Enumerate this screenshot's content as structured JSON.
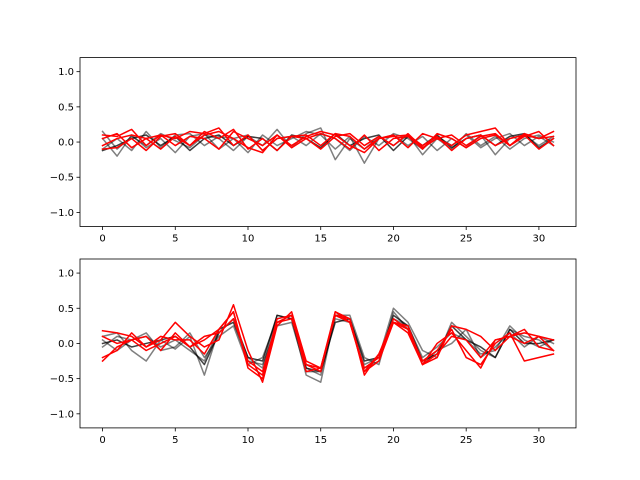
{
  "chart_data": [
    {
      "type": "line",
      "title": "",
      "xlabel": "",
      "ylabel": "",
      "xlim": [
        -1.55,
        32.55
      ],
      "ylim": [
        -1.2,
        1.2
      ],
      "x_ticks": [
        0,
        5,
        10,
        15,
        20,
        25,
        30
      ],
      "y_ticks": [
        -1.0,
        -0.5,
        0.0,
        0.5,
        1.0
      ],
      "x_tick_labels": [
        "0",
        "5",
        "10",
        "15",
        "20",
        "25",
        "30"
      ],
      "y_tick_labels": [
        "−1.0",
        "−0.5",
        "0.0",
        "0.5",
        "1.0"
      ],
      "grid": false,
      "x": [
        0,
        1,
        2,
        3,
        4,
        5,
        6,
        7,
        8,
        9,
        10,
        11,
        12,
        13,
        14,
        15,
        16,
        17,
        18,
        19,
        20,
        21,
        22,
        23,
        24,
        25,
        26,
        27,
        28,
        29,
        30,
        31
      ],
      "series": [
        {
          "color": "#000000",
          "opacity": 0.5,
          "values": [
            0.15,
            -0.1,
            0.08,
            -0.05,
            0.12,
            0.02,
            -0.08,
            0.1,
            0.05,
            -0.12,
            0.08,
            -0.05,
            0.18,
            -0.08,
            0.12,
            0.2,
            -0.25,
            0.05,
            -0.1,
            0.08,
            -0.05,
            0.1,
            -0.18,
            0.05,
            -0.1,
            0.12,
            -0.05,
            0.08,
            -0.1,
            0.05,
            0.1,
            0.0
          ]
        },
        {
          "color": "#000000",
          "opacity": 0.5,
          "values": [
            -0.1,
            0.05,
            -0.12,
            0.15,
            -0.08,
            0.1,
            0.12,
            -0.05,
            0.08,
            0.05,
            -0.15,
            0.1,
            -0.05,
            0.05,
            0.15,
            0.1,
            -0.1,
            0.08,
            -0.3,
            0.05,
            0.1,
            -0.05,
            0.08,
            -0.12,
            0.05,
            -0.08,
            0.1,
            -0.18,
            0.05,
            0.1,
            -0.05,
            0.08
          ]
        },
        {
          "color": "#000000",
          "opacity": 0.5,
          "values": [
            0.05,
            -0.2,
            0.1,
            -0.08,
            0.05,
            -0.15,
            0.08,
            0.12,
            -0.1,
            0.05,
            0.1,
            -0.12,
            0.05,
            0.08,
            -0.05,
            0.12,
            0.05,
            -0.12,
            0.08,
            -0.05,
            0.12,
            0.05,
            -0.1,
            0.08,
            -0.05,
            0.1,
            -0.08,
            0.05,
            0.12,
            -0.05,
            0.08,
            -0.05
          ]
        },
        {
          "color": "#000000",
          "opacity": 0.75,
          "values": [
            -0.12,
            -0.05,
            0.05,
            0.1,
            -0.05,
            0.08,
            -0.12,
            0.05,
            0.1,
            -0.05,
            0.08,
            0.05,
            -0.12,
            0.1,
            0.05,
            -0.08,
            0.12,
            -0.05,
            0.05,
            0.1,
            -0.12,
            0.08,
            -0.05,
            0.1,
            -0.08,
            0.05,
            0.1,
            -0.05,
            0.08,
            0.12,
            -0.08,
            0.05
          ]
        },
        {
          "color": "#ff0000",
          "opacity": 1.0,
          "values": [
            0.1,
            0.08,
            0.18,
            -0.05,
            0.1,
            0.05,
            0.15,
            0.12,
            0.2,
            -0.05,
            0.1,
            -0.12,
            0.05,
            0.08,
            0.1,
            -0.05,
            0.12,
            0.08,
            -0.1,
            0.05,
            0.1,
            -0.08,
            0.12,
            0.05,
            -0.05,
            0.1,
            0.15,
            0.2,
            -0.05,
            0.1,
            0.05,
            0.15
          ]
        },
        {
          "color": "#ff0000",
          "opacity": 1.0,
          "values": [
            -0.1,
            -0.08,
            0.05,
            -0.12,
            0.08,
            0.12,
            -0.05,
            0.15,
            0.05,
            0.18,
            -0.1,
            0.05,
            -0.12,
            0.08,
            0.05,
            -0.1,
            0.08,
            0.12,
            -0.05,
            0.08,
            -0.05,
            0.12,
            -0.08,
            0.05,
            0.1,
            -0.05,
            0.08,
            0.12,
            -0.05,
            0.08,
            0.15,
            -0.05
          ]
        },
        {
          "color": "#ff0000",
          "opacity": 1.0,
          "values": [
            0.05,
            0.12,
            -0.08,
            0.05,
            0.1,
            -0.05,
            0.08,
            0.05,
            -0.1,
            0.15,
            0.05,
            -0.05,
            0.1,
            -0.08,
            0.05,
            0.12,
            0.05,
            -0.1,
            0.1,
            -0.12,
            0.05,
            0.08,
            -0.1,
            0.12,
            0.05,
            -0.08,
            0.05,
            0.1,
            -0.05,
            0.12,
            0.05,
            0.08
          ]
        },
        {
          "color": "#ff0000",
          "opacity": 1.0,
          "values": [
            -0.05,
            0.05,
            0.1,
            0.05,
            -0.1,
            0.08,
            -0.05,
            0.1,
            0.15,
            0.05,
            -0.08,
            -0.15,
            0.1,
            -0.05,
            0.08,
            0.15,
            0.1,
            -0.05,
            -0.15,
            0.05,
            0.08,
            0.1,
            -0.05,
            0.08,
            -0.12,
            0.05,
            0.1,
            -0.05,
            0.05,
            0.1,
            -0.1,
            0.05
          ]
        }
      ]
    },
    {
      "type": "line",
      "title": "",
      "xlabel": "",
      "ylabel": "",
      "xlim": [
        -1.55,
        32.55
      ],
      "ylim": [
        -1.2,
        1.2
      ],
      "x_ticks": [
        0,
        5,
        10,
        15,
        20,
        25,
        30
      ],
      "y_ticks": [
        -1.0,
        -0.5,
        0.0,
        0.5,
        1.0
      ],
      "x_tick_labels": [
        "0",
        "5",
        "10",
        "15",
        "20",
        "25",
        "30"
      ],
      "y_tick_labels": [
        "−1.0",
        "−0.5",
        "0.0",
        "0.5",
        "1.0"
      ],
      "grid": false,
      "x": [
        0,
        1,
        2,
        3,
        4,
        5,
        6,
        7,
        8,
        9,
        10,
        11,
        12,
        13,
        14,
        15,
        16,
        17,
        18,
        19,
        20,
        21,
        22,
        23,
        24,
        25,
        26,
        27,
        28,
        29,
        30,
        31
      ],
      "series": [
        {
          "color": "#000000",
          "opacity": 0.5,
          "values": [
            0.1,
            0.15,
            -0.1,
            -0.25,
            0.05,
            -0.08,
            0.1,
            -0.45,
            0.2,
            0.3,
            -0.2,
            -0.35,
            0.4,
            0.35,
            -0.45,
            -0.55,
            0.4,
            0.35,
            -0.3,
            -0.2,
            0.5,
            0.3,
            -0.1,
            -0.2,
            0.3,
            0.1,
            -0.1,
            -0.2,
            0.2,
            0.1,
            0.05,
            -0.1
          ]
        },
        {
          "color": "#000000",
          "opacity": 0.5,
          "values": [
            -0.05,
            0.1,
            0.05,
            0.15,
            -0.1,
            -0.05,
            0.15,
            -0.2,
            0.1,
            0.25,
            -0.3,
            -0.2,
            0.35,
            0.4,
            -0.35,
            -0.45,
            0.35,
            0.3,
            -0.35,
            -0.25,
            0.35,
            0.25,
            -0.2,
            -0.05,
            0.15,
            0.05,
            -0.15,
            -0.1,
            0.25,
            0.05,
            -0.05,
            0.05
          ]
        },
        {
          "color": "#000000",
          "opacity": 0.5,
          "values": [
            0.05,
            -0.1,
            0.05,
            0.1,
            -0.05,
            0.05,
            -0.1,
            -0.25,
            0.2,
            0.3,
            -0.25,
            -0.3,
            0.25,
            0.3,
            -0.4,
            -0.4,
            0.4,
            0.4,
            -0.2,
            -0.3,
            0.45,
            0.2,
            -0.3,
            -0.1,
            0.0,
            0.2,
            -0.2,
            -0.05,
            0.15,
            -0.05,
            0.1,
            0.0
          ]
        },
        {
          "color": "#000000",
          "opacity": 0.75,
          "values": [
            0.0,
            0.05,
            -0.05,
            0.0,
            0.05,
            0.1,
            -0.05,
            -0.3,
            0.15,
            0.35,
            -0.2,
            -0.25,
            0.4,
            0.35,
            -0.35,
            -0.4,
            0.3,
            0.35,
            -0.25,
            -0.2,
            0.4,
            0.25,
            -0.25,
            -0.15,
            0.25,
            0.05,
            -0.05,
            -0.2,
            0.2,
            0.0,
            0.0,
            0.05
          ]
        },
        {
          "color": "#ff0000",
          "opacity": 1.0,
          "values": [
            0.18,
            0.15,
            0.1,
            -0.05,
            0.05,
            0.3,
            0.1,
            -0.05,
            0.05,
            0.55,
            -0.1,
            -0.55,
            0.25,
            0.45,
            -0.25,
            -0.35,
            0.45,
            0.35,
            -0.4,
            -0.15,
            0.3,
            0.25,
            -0.3,
            -0.2,
            0.25,
            0.2,
            0.1,
            -0.1,
            0.1,
            0.15,
            0.1,
            -0.1
          ]
        },
        {
          "color": "#ff0000",
          "opacity": 1.0,
          "values": [
            -0.2,
            -0.1,
            0.15,
            -0.05,
            0.1,
            0.05,
            0.05,
            -0.15,
            0.2,
            0.45,
            -0.35,
            -0.5,
            0.3,
            0.4,
            -0.4,
            -0.35,
            0.4,
            0.35,
            -0.45,
            -0.15,
            0.35,
            0.2,
            -0.25,
            -0.1,
            0.2,
            -0.2,
            -0.3,
            0.0,
            0.15,
            -0.25,
            -0.2,
            -0.15
          ]
        },
        {
          "color": "#ff0000",
          "opacity": 1.0,
          "values": [
            0.1,
            0.0,
            0.05,
            0.1,
            -0.1,
            0.15,
            -0.05,
            0.1,
            0.15,
            0.35,
            -0.25,
            -0.4,
            0.3,
            0.35,
            -0.3,
            -0.35,
            0.4,
            0.3,
            -0.35,
            -0.2,
            0.3,
            0.2,
            -0.3,
            -0.15,
            0.1,
            0.05,
            -0.2,
            0.05,
            0.1,
            0.2,
            -0.05,
            -0.1
          ]
        },
        {
          "color": "#ff0000",
          "opacity": 1.0,
          "values": [
            -0.25,
            -0.05,
            0.05,
            -0.1,
            0.0,
            0.1,
            -0.05,
            0.05,
            0.2,
            0.45,
            -0.3,
            -0.45,
            0.35,
            0.4,
            -0.3,
            -0.4,
            0.45,
            0.3,
            -0.4,
            -0.25,
            0.3,
            0.15,
            -0.3,
            0.0,
            0.15,
            -0.1,
            -0.35,
            0.05,
            0.1,
            0.0,
            0.1,
            0.05
          ]
        }
      ]
    }
  ]
}
